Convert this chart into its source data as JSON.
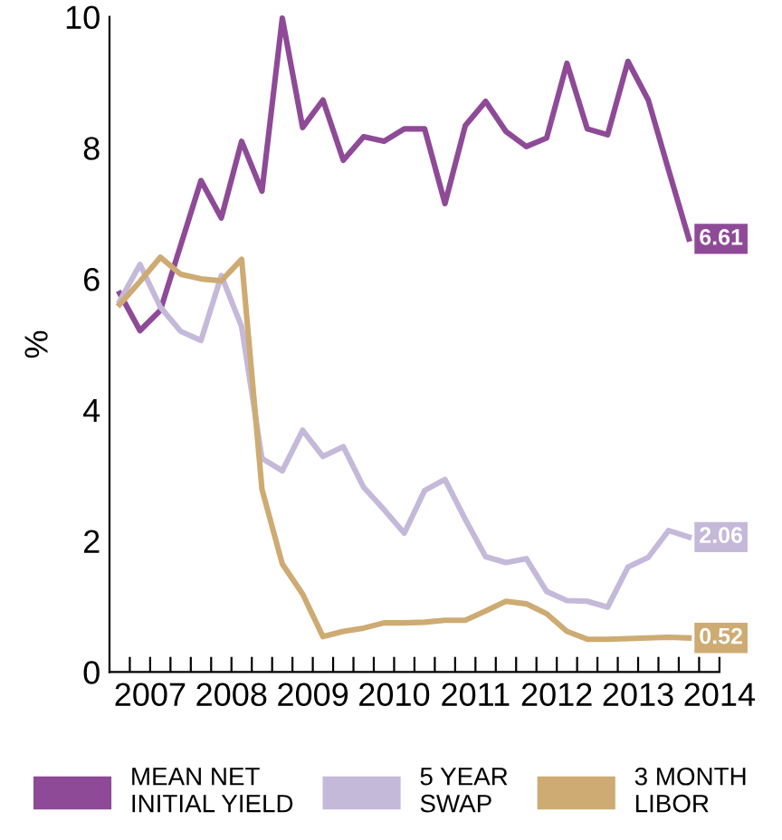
{
  "chart_data": {
    "type": "line",
    "ylabel": "%",
    "x": [
      2007.125,
      2007.375,
      2007.625,
      2007.875,
      2008.125,
      2008.375,
      2008.625,
      2008.875,
      2009.125,
      2009.375,
      2009.625,
      2009.875,
      2010.125,
      2010.375,
      2010.625,
      2010.875,
      2011.125,
      2011.375,
      2011.625,
      2011.875,
      2012.125,
      2012.375,
      2012.625,
      2012.875,
      2013.125,
      2013.375,
      2013.625,
      2013.875,
      2014.125
    ],
    "series": [
      {
        "name": "MEAN NET INITIAL YIELD",
        "color": "#8e4a97",
        "values": [
          5.78,
          5.21,
          5.52,
          6.51,
          7.5,
          6.93,
          8.1,
          7.34,
          9.98,
          8.31,
          8.73,
          7.81,
          8.17,
          8.1,
          8.29,
          8.29,
          7.15,
          8.34,
          8.71,
          8.25,
          8.02,
          8.15,
          9.29,
          8.29,
          8.2,
          9.32,
          8.73,
          7.66,
          6.61
        ],
        "value_labels": [
          null,
          null,
          null,
          null,
          null,
          null,
          null,
          null,
          null,
          null,
          null,
          null,
          null,
          null,
          null,
          null,
          null,
          null,
          null,
          null,
          null,
          null,
          null,
          null,
          null,
          null,
          null,
          null,
          "6.61"
        ]
      },
      {
        "name": "5 YEAR SWAP",
        "color": "#c5b9da",
        "values": [
          5.66,
          6.22,
          5.57,
          5.2,
          5.06,
          6.05,
          5.27,
          3.26,
          3.07,
          3.69,
          3.29,
          3.44,
          2.82,
          2.48,
          2.12,
          2.77,
          2.94,
          2.33,
          1.76,
          1.67,
          1.73,
          1.23,
          1.09,
          1.08,
          0.99,
          1.6,
          1.75,
          2.16,
          2.06
        ],
        "value_labels": [
          null,
          null,
          null,
          null,
          null,
          null,
          null,
          null,
          null,
          null,
          null,
          null,
          null,
          null,
          null,
          null,
          null,
          null,
          null,
          null,
          null,
          null,
          null,
          null,
          null,
          null,
          null,
          null,
          "2.06"
        ]
      },
      {
        "name": "3 MONTH LIBOR",
        "color": "#cdab72",
        "values": [
          5.61,
          5.96,
          6.33,
          6.07,
          6.0,
          5.97,
          6.3,
          2.79,
          1.65,
          1.19,
          0.54,
          0.62,
          0.67,
          0.75,
          0.75,
          0.76,
          0.79,
          0.79,
          0.93,
          1.08,
          1.04,
          0.89,
          0.62,
          0.5,
          0.5,
          0.51,
          0.52,
          0.53,
          0.52
        ],
        "value_labels": [
          null,
          null,
          null,
          null,
          null,
          null,
          null,
          null,
          null,
          null,
          null,
          null,
          null,
          null,
          null,
          null,
          null,
          null,
          null,
          null,
          null,
          null,
          null,
          null,
          null,
          null,
          null,
          null,
          "0.52"
        ]
      }
    ],
    "xlim": [
      2007,
      2014.5
    ],
    "xticks": [
      {
        "value": 2007.25,
        "label": null
      },
      {
        "value": 2007.5,
        "label": "2007"
      },
      {
        "value": 2007.75,
        "label": null
      },
      {
        "value": 2008,
        "label": null
      },
      {
        "value": 2008.25,
        "label": null
      },
      {
        "value": 2008.5,
        "label": "2008"
      },
      {
        "value": 2008.75,
        "label": null
      },
      {
        "value": 2009,
        "label": null
      },
      {
        "value": 2009.25,
        "label": null
      },
      {
        "value": 2009.5,
        "label": "2009"
      },
      {
        "value": 2009.75,
        "label": null
      },
      {
        "value": 2010,
        "label": null
      },
      {
        "value": 2010.25,
        "label": null
      },
      {
        "value": 2010.5,
        "label": "2010"
      },
      {
        "value": 2010.75,
        "label": null
      },
      {
        "value": 2011,
        "label": null
      },
      {
        "value": 2011.25,
        "label": null
      },
      {
        "value": 2011.5,
        "label": "2011"
      },
      {
        "value": 2011.75,
        "label": null
      },
      {
        "value": 2012,
        "label": null
      },
      {
        "value": 2012.25,
        "label": null
      },
      {
        "value": 2012.5,
        "label": "2012"
      },
      {
        "value": 2012.75,
        "label": null
      },
      {
        "value": 2013,
        "label": null
      },
      {
        "value": 2013.25,
        "label": null
      },
      {
        "value": 2013.5,
        "label": "2013"
      },
      {
        "value": 2013.75,
        "label": null
      },
      {
        "value": 2014,
        "label": null
      },
      {
        "value": 2014.25,
        "label": null
      },
      {
        "value": 2014.5,
        "label": "2014"
      }
    ],
    "ylim": [
      0,
      10
    ],
    "yticks": [
      0,
      2,
      4,
      6,
      8,
      10
    ],
    "grid": false,
    "legend": "bottom",
    "marker": "none",
    "line_style": "solid"
  }
}
